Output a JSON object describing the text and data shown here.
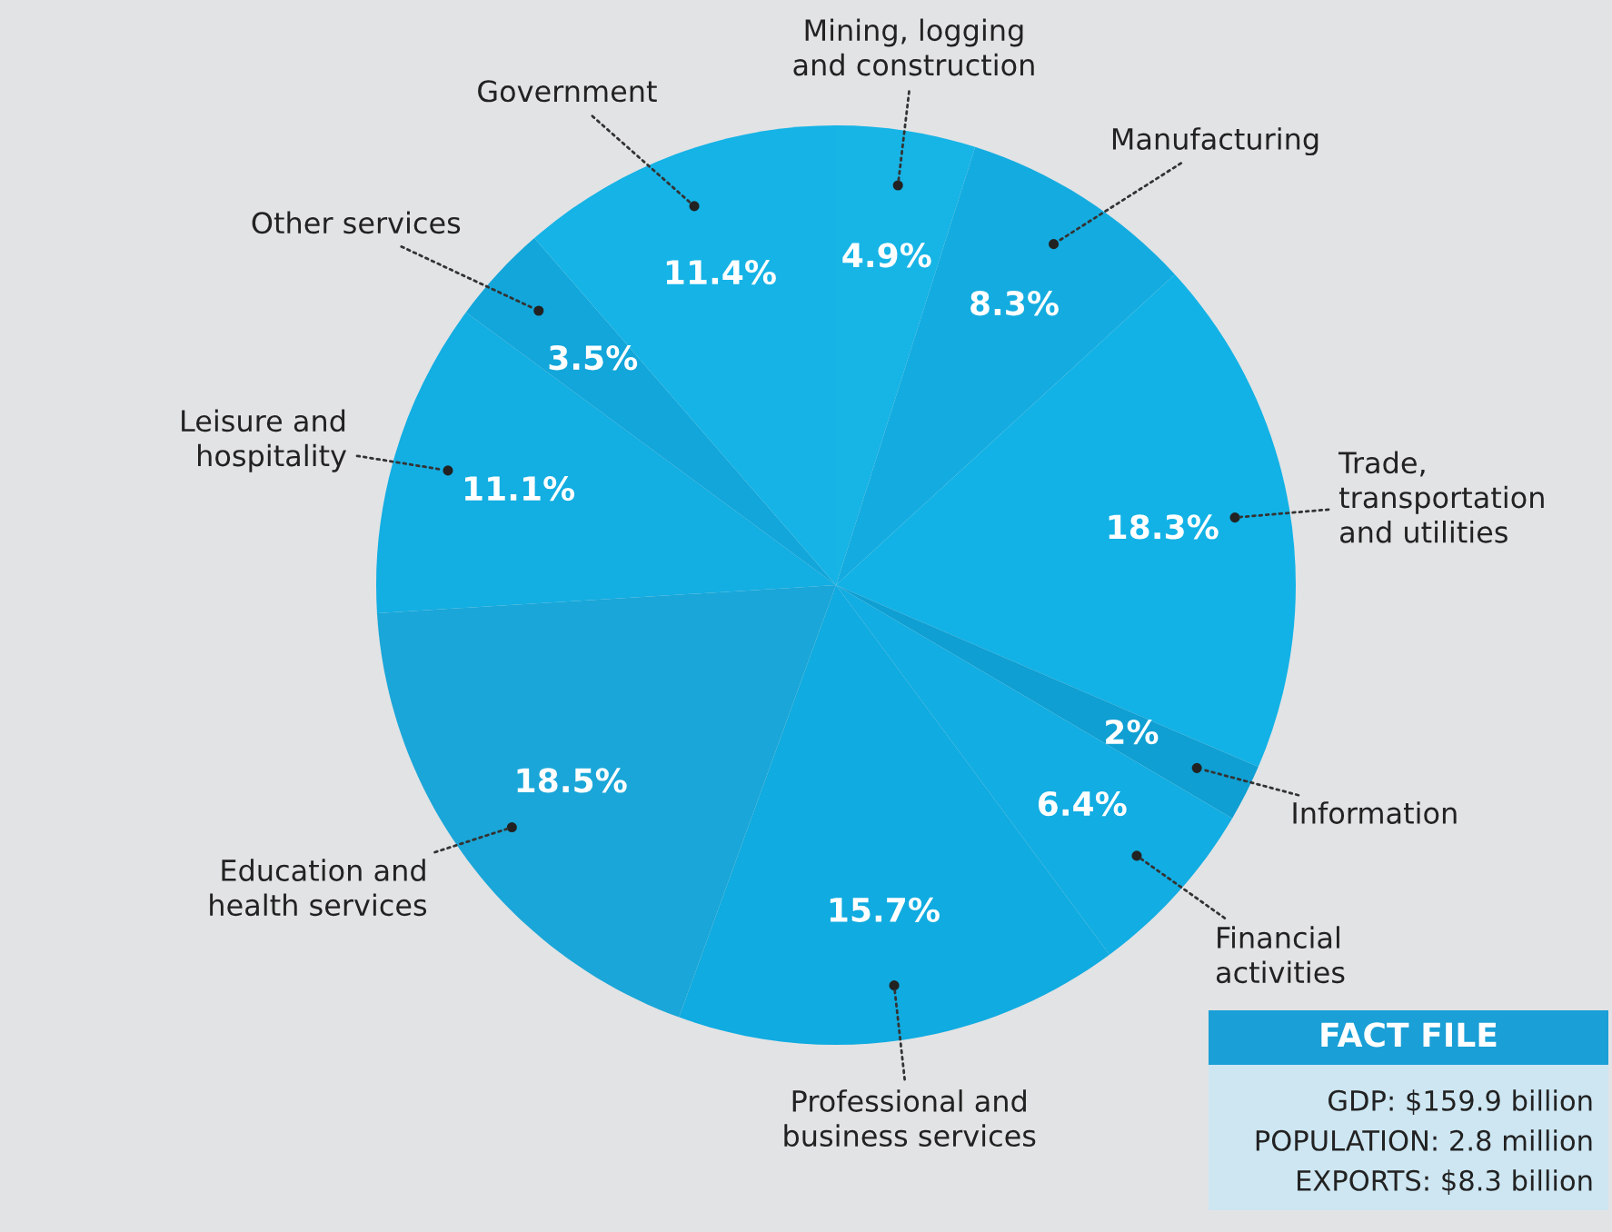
{
  "chart_data": {
    "type": "pie",
    "categories": [
      "Mining, logging\nand construction",
      "Manufacturing",
      "Trade,\ntransportation\nand utilities",
      "Information",
      "Financial\nactivities",
      "Professional and\nbusiness services",
      "Education and\nhealth services",
      "Leisure and\nhospitality",
      "Other services",
      "Government"
    ],
    "values": [
      4.9,
      8.3,
      18.3,
      2,
      6.4,
      15.7,
      18.5,
      11.1,
      3.5,
      11.4
    ],
    "value_labels": [
      "4.9%",
      "8.3%",
      "18.3%",
      "2%",
      "6.4%",
      "15.7%",
      "18.5%",
      "11.1%",
      "3.5%",
      "11.4%"
    ],
    "colors": [
      "#17b4e6",
      "#14ace0",
      "#12b2e6",
      "#0f9fd2",
      "#12ade2",
      "#10abe0",
      "#1aa6d8",
      "#13aee2",
      "#12a6da",
      "#15b3e6"
    ],
    "annotations": [
      "FACT FILE",
      "GDP: $159.9 billion",
      "POPULATION: 2.8 million",
      "EXPORTS: $8.3 billion"
    ],
    "legend": false
  }
}
